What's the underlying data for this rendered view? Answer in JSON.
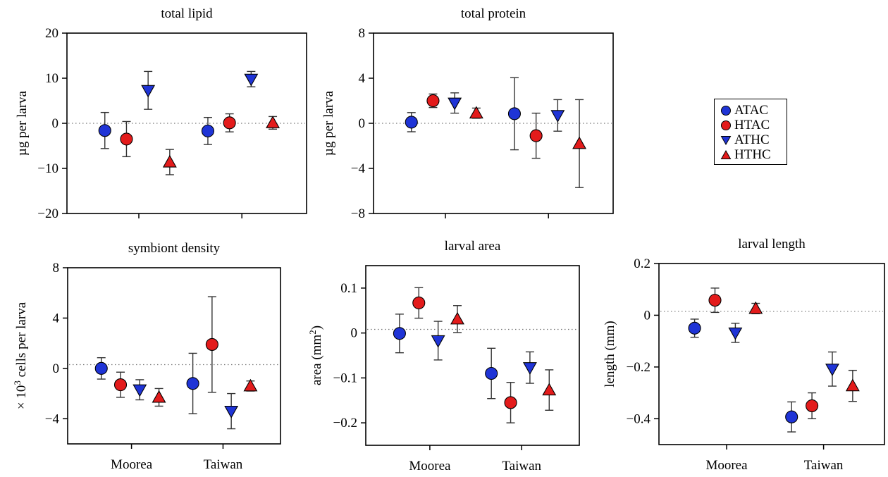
{
  "colors": {
    "ATAC": "#1f34d6",
    "HTAC": "#e31b1b",
    "ATHC": "#1f34d6",
    "HTHC": "#e31b1b"
  },
  "legend": {
    "position": "right, between top panels",
    "items": [
      {
        "label": "ATAC",
        "marker": "circle",
        "color": "#1f34d6"
      },
      {
        "label": "HTAC",
        "marker": "circle",
        "color": "#e31b1b"
      },
      {
        "label": "ATHC",
        "marker": "triangle-down",
        "color": "#1f34d6"
      },
      {
        "label": "HTHC",
        "marker": "triangle-up",
        "color": "#e31b1b"
      }
    ]
  },
  "chart_data": [
    {
      "type": "scatter",
      "title": "total lipid",
      "ylabel": "µg per larva",
      "ylim": [
        -20,
        20
      ],
      "yticks": [
        -20,
        -10,
        0,
        10,
        20
      ],
      "ytick_labels": [
        "−20",
        "−10",
        "0",
        "10",
        "20"
      ],
      "categories": [
        "Moorea",
        "Taiwan"
      ],
      "show_xtick_labels": false,
      "zero_line": 0,
      "series": [
        {
          "name": "ATAC",
          "values": [
            -1.6,
            -1.7
          ],
          "errors": [
            4.0,
            3.0
          ]
        },
        {
          "name": "HTAC",
          "values": [
            -3.5,
            0.1
          ],
          "errors": [
            3.9,
            2.0
          ]
        },
        {
          "name": "ATHC",
          "values": [
            7.3,
            9.8
          ],
          "errors": [
            4.2,
            1.7
          ]
        },
        {
          "name": "HTHC",
          "values": [
            -8.6,
            0.1
          ],
          "errors": [
            2.8,
            1.4
          ]
        }
      ]
    },
    {
      "type": "scatter",
      "title": "total protein",
      "ylabel": "µg per larva",
      "ylim": [
        -8,
        8
      ],
      "yticks": [
        -8,
        -4,
        0,
        4,
        8
      ],
      "ytick_labels": [
        "−8",
        "−4",
        "0",
        "4",
        "8"
      ],
      "categories": [
        "Moorea",
        "Taiwan"
      ],
      "show_xtick_labels": false,
      "zero_line": 0,
      "series": [
        {
          "name": "ATAC",
          "values": [
            0.1,
            0.85
          ],
          "errors": [
            0.85,
            3.2
          ]
        },
        {
          "name": "HTAC",
          "values": [
            2.0,
            -1.1
          ],
          "errors": [
            0.6,
            2.0
          ]
        },
        {
          "name": "ATHC",
          "values": [
            1.8,
            0.7
          ],
          "errors": [
            0.9,
            1.4
          ]
        },
        {
          "name": "HTHC",
          "values": [
            0.9,
            -1.8
          ],
          "errors": [
            0.45,
            3.9
          ]
        }
      ]
    },
    {
      "type": "scatter",
      "title": "symbiont density",
      "ylabel_parts": [
        "× 10",
        "3",
        " cells per larva"
      ],
      "ylim": [
        -6,
        8
      ],
      "yticks": [
        -4,
        0,
        4,
        8
      ],
      "ytick_labels": [
        "−4",
        "0",
        "4",
        "8"
      ],
      "categories": [
        "Moorea",
        "Taiwan"
      ],
      "show_xtick_labels": true,
      "zero_line": 0.3,
      "series": [
        {
          "name": "ATAC",
          "values": [
            0.0,
            -1.2
          ],
          "errors": [
            0.85,
            2.4
          ]
        },
        {
          "name": "HTAC",
          "values": [
            -1.3,
            1.9
          ],
          "errors": [
            1.0,
            3.8
          ]
        },
        {
          "name": "ATHC",
          "values": [
            -1.7,
            -3.4
          ],
          "errors": [
            0.8,
            1.4
          ]
        },
        {
          "name": "HTHC",
          "values": [
            -2.3,
            -1.4
          ],
          "errors": [
            0.7,
            0.4
          ]
        }
      ]
    },
    {
      "type": "scatter",
      "title": "larval area",
      "ylabel_parts": [
        "area (mm",
        "2",
        ")"
      ],
      "ylim": [
        -0.25,
        0.15
      ],
      "yticks": [
        -0.2,
        -0.1,
        0,
        0.1
      ],
      "ytick_labels": [
        "−0.2",
        "−0.1",
        "0",
        "0.1"
      ],
      "categories": [
        "Moorea",
        "Taiwan"
      ],
      "show_xtick_labels": true,
      "zero_line": 0.008,
      "series": [
        {
          "name": "ATAC",
          "values": [
            -0.001,
            -0.09
          ],
          "errors": [
            0.043,
            0.056
          ]
        },
        {
          "name": "HTAC",
          "values": [
            0.067,
            -0.155
          ],
          "errors": [
            0.034,
            0.045
          ]
        },
        {
          "name": "ATHC",
          "values": [
            -0.017,
            -0.077
          ],
          "errors": [
            0.043,
            0.035
          ]
        },
        {
          "name": "HTHC",
          "values": [
            0.031,
            -0.127
          ],
          "errors": [
            0.03,
            0.045
          ]
        }
      ]
    },
    {
      "type": "scatter",
      "title": "larval length",
      "ylabel": "length (mm)",
      "ylim": [
        -0.5,
        0.2
      ],
      "yticks": [
        -0.4,
        -0.2,
        0,
        0.2
      ],
      "ytick_labels": [
        "−0.4",
        "−0.2",
        "0",
        "0.2"
      ],
      "categories": [
        "Moorea",
        "Taiwan"
      ],
      "show_xtick_labels": true,
      "zero_line": 0.015,
      "series": [
        {
          "name": "ATAC",
          "values": [
            -0.05,
            -0.393
          ],
          "errors": [
            0.035,
            0.058
          ]
        },
        {
          "name": "HTAC",
          "values": [
            0.058,
            -0.35
          ],
          "errors": [
            0.047,
            0.05
          ]
        },
        {
          "name": "ATHC",
          "values": [
            -0.068,
            -0.208
          ],
          "errors": [
            0.037,
            0.066
          ]
        },
        {
          "name": "HTHC",
          "values": [
            0.026,
            -0.273
          ],
          "errors": [
            0.02,
            0.06
          ]
        }
      ]
    }
  ]
}
